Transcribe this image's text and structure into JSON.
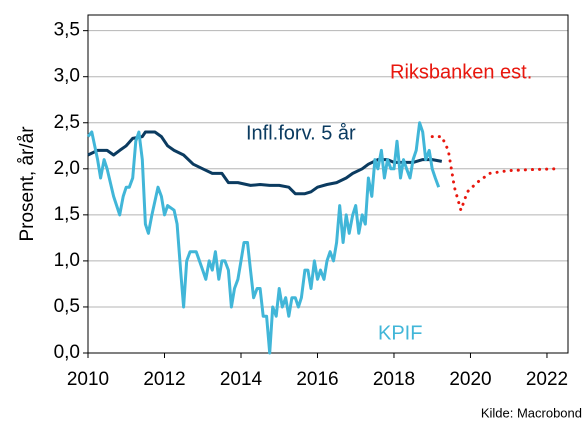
{
  "chart_data": {
    "type": "line",
    "ylabel": "Prosent, år/år",
    "source": "Kilde: Macrobond",
    "xlim": [
      2010,
      2022.55
    ],
    "xticks": [
      2010,
      2012,
      2014,
      2016,
      2018,
      2020,
      2022
    ],
    "ylim": [
      0,
      3.67
    ],
    "yticks": [
      {
        "value": 0,
        "label": "0,0"
      },
      {
        "value": 0.5,
        "label": "0,5"
      },
      {
        "value": 1,
        "label": "1,0"
      },
      {
        "value": 1.5,
        "label": "1,5"
      },
      {
        "value": 2,
        "label": "2,0"
      },
      {
        "value": 2.5,
        "label": "2,5"
      },
      {
        "value": 3,
        "label": "3,0"
      },
      {
        "value": 3.5,
        "label": "3,5"
      }
    ],
    "grid": true,
    "series": [
      {
        "name": "Infl.forv. 5 år",
        "color": "#0b3b60",
        "style": "solid",
        "x": [
          2010.0,
          2010.25,
          2010.5,
          2010.67,
          2010.83,
          2011.0,
          2011.17,
          2011.42,
          2011.5,
          2011.75,
          2011.92,
          2012.08,
          2012.25,
          2012.5,
          2012.75,
          2013.0,
          2013.25,
          2013.5,
          2013.67,
          2013.92,
          2014.25,
          2014.5,
          2014.75,
          2015.0,
          2015.25,
          2015.42,
          2015.67,
          2015.83,
          2016.0,
          2016.25,
          2016.5,
          2016.75,
          2016.92,
          2017.17,
          2017.33,
          2017.58,
          2017.83,
          2018.0,
          2018.5,
          2018.75,
          2019.0,
          2019.25
        ],
        "values": [
          2.15,
          2.2,
          2.2,
          2.15,
          2.2,
          2.25,
          2.33,
          2.35,
          2.4,
          2.4,
          2.35,
          2.25,
          2.2,
          2.15,
          2.05,
          2.0,
          1.95,
          1.95,
          1.85,
          1.85,
          1.82,
          1.83,
          1.82,
          1.82,
          1.8,
          1.73,
          1.73,
          1.75,
          1.8,
          1.83,
          1.85,
          1.9,
          1.95,
          2.0,
          2.05,
          2.1,
          2.1,
          2.07,
          2.07,
          2.1,
          2.1,
          2.08
        ]
      },
      {
        "name": "KPIF",
        "color": "#41b6d8",
        "style": "solid",
        "x": [
          2010.0,
          2010.1,
          2010.25,
          2010.33,
          2010.42,
          2010.5,
          2010.67,
          2010.83,
          2010.92,
          2011.0,
          2011.08,
          2011.17,
          2011.25,
          2011.33,
          2011.42,
          2011.5,
          2011.58,
          2011.67,
          2011.83,
          2011.92,
          2012.0,
          2012.08,
          2012.25,
          2012.33,
          2012.42,
          2012.5,
          2012.58,
          2012.67,
          2012.83,
          2013.0,
          2013.08,
          2013.17,
          2013.25,
          2013.33,
          2013.42,
          2013.5,
          2013.58,
          2013.67,
          2013.75,
          2013.83,
          2013.92,
          2014.0,
          2014.08,
          2014.17,
          2014.25,
          2014.33,
          2014.42,
          2014.5,
          2014.58,
          2014.67,
          2014.75,
          2014.83,
          2014.92,
          2015.0,
          2015.08,
          2015.17,
          2015.25,
          2015.33,
          2015.42,
          2015.5,
          2015.58,
          2015.67,
          2015.75,
          2015.83,
          2015.92,
          2016.0,
          2016.08,
          2016.17,
          2016.25,
          2016.33,
          2016.42,
          2016.5,
          2016.58,
          2016.67,
          2016.75,
          2016.83,
          2016.92,
          2017.0,
          2017.08,
          2017.17,
          2017.25,
          2017.33,
          2017.42,
          2017.5,
          2017.58,
          2017.67,
          2017.75,
          2017.83,
          2017.92,
          2018.0,
          2018.08,
          2018.17,
          2018.25,
          2018.33,
          2018.42,
          2018.5,
          2018.58,
          2018.67,
          2018.75,
          2018.83,
          2018.92,
          2019.0,
          2019.08,
          2019.17
        ],
        "values": [
          2.35,
          2.4,
          2.1,
          1.9,
          2.1,
          2.0,
          1.7,
          1.5,
          1.7,
          1.8,
          1.8,
          1.9,
          2.3,
          2.4,
          2.1,
          1.4,
          1.3,
          1.5,
          1.8,
          1.7,
          1.5,
          1.6,
          1.55,
          1.4,
          0.9,
          0.5,
          1.0,
          1.1,
          1.1,
          0.9,
          0.8,
          1.0,
          0.9,
          1.1,
          0.8,
          1.0,
          1.0,
          0.9,
          0.5,
          0.7,
          0.8,
          1.0,
          1.2,
          1.2,
          0.9,
          0.6,
          0.7,
          0.7,
          0.4,
          0.4,
          0.0,
          0.5,
          0.4,
          0.7,
          0.5,
          0.6,
          0.4,
          0.6,
          0.6,
          0.5,
          0.6,
          0.9,
          0.9,
          0.7,
          1.0,
          0.8,
          0.9,
          0.8,
          1.0,
          1.1,
          1.0,
          1.2,
          1.6,
          1.2,
          1.5,
          1.3,
          1.5,
          1.6,
          1.3,
          1.5,
          1.4,
          1.9,
          1.7,
          2.1,
          2.0,
          2.2,
          1.9,
          2.1,
          2.0,
          2.0,
          2.3,
          1.9,
          2.1,
          2.0,
          1.9,
          2.1,
          2.2,
          2.5,
          2.4,
          2.1,
          2.2,
          2.0,
          1.9,
          1.8
        ]
      },
      {
        "name": "Riksbanken est.",
        "color": "#e8170e",
        "style": "dotted",
        "x": [
          2019.0,
          2019.25,
          2019.42,
          2019.58,
          2019.75,
          2019.92,
          2020.17,
          2020.5,
          2021.0,
          2021.5,
          2022.25
        ],
        "values": [
          2.35,
          2.35,
          2.2,
          1.8,
          1.55,
          1.75,
          1.85,
          1.95,
          1.98,
          1.99,
          2.0
        ]
      }
    ]
  }
}
